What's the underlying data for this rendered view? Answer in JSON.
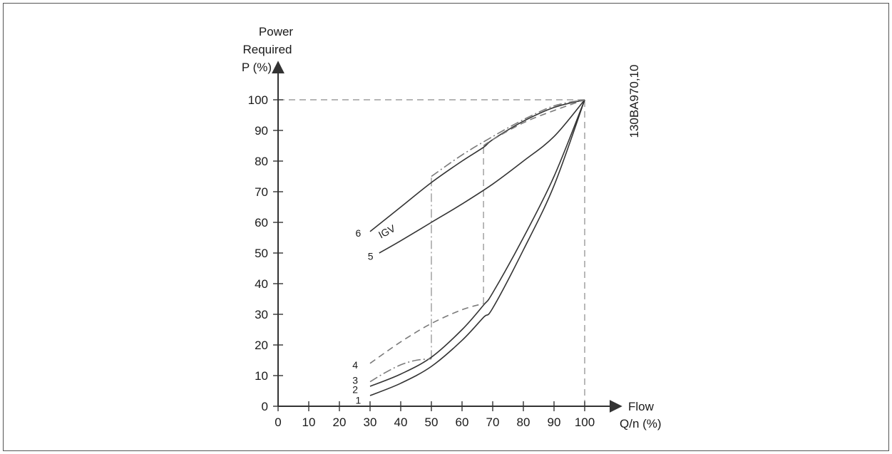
{
  "chart_data": {
    "type": "line",
    "xaxis": {
      "label_line1": "Flow",
      "label_line2": "Q/n (%)",
      "ticks": [
        0,
        10,
        20,
        30,
        40,
        50,
        60,
        70,
        80,
        90,
        100
      ],
      "range": [
        0,
        110
      ]
    },
    "yaxis": {
      "label_lines": [
        "Power",
        "Required",
        "P (%)"
      ],
      "ticks": [
        0,
        10,
        20,
        30,
        40,
        50,
        60,
        70,
        80,
        90,
        100
      ],
      "range": [
        0,
        110
      ]
    },
    "figure_code": "130BA970,10",
    "annotation": "IGV",
    "grid": false,
    "legend": "none",
    "series": [
      {
        "name": "1",
        "style": "solid",
        "x": [
          30,
          40,
          50,
          60,
          67,
          70,
          80,
          90,
          100
        ],
        "y": [
          3.5,
          7.5,
          13,
          21.5,
          29,
          32,
          51,
          72,
          100
        ]
      },
      {
        "name": "2",
        "style": "solid",
        "x": [
          30,
          40,
          50,
          60,
          67,
          70,
          80,
          90,
          100
        ],
        "y": [
          6.5,
          10.5,
          16,
          25,
          33,
          37,
          55,
          75,
          100
        ]
      },
      {
        "name": "3",
        "style": "dashdot",
        "x": [
          30,
          35,
          40,
          45,
          50
        ],
        "y": [
          8,
          11,
          13.5,
          15,
          15.5
        ]
      },
      {
        "name": "4",
        "style": "dashed",
        "x": [
          30,
          40,
          50,
          60,
          67
        ],
        "y": [
          14,
          21,
          27,
          31.5,
          33.5
        ]
      },
      {
        "name": "5",
        "style": "solid",
        "x": [
          33,
          40,
          50,
          60,
          70,
          80,
          90,
          100
        ],
        "y": [
          50,
          54,
          60,
          66,
          72.5,
          80,
          88,
          100
        ]
      },
      {
        "name": "6",
        "style": "solid",
        "x": [
          30,
          40,
          50,
          60,
          67,
          70,
          80,
          90,
          100
        ],
        "y": [
          57,
          65,
          73,
          80,
          84.5,
          87,
          93,
          97.5,
          100
        ]
      },
      {
        "name": "",
        "style": "dashdot",
        "x": [
          50,
          60,
          70,
          80,
          90,
          100
        ],
        "y": [
          75,
          82,
          88,
          93.5,
          98,
          100
        ]
      },
      {
        "name": "",
        "style": "dashed",
        "x": [
          67,
          70,
          80,
          90,
          100
        ],
        "y": [
          85,
          87,
          92.5,
          96.5,
          100
        ]
      }
    ],
    "reference_lines": [
      {
        "style": "dashed",
        "x": [
          0,
          100
        ],
        "y": [
          100,
          100
        ]
      },
      {
        "style": "dashed",
        "x": [
          100,
          100
        ],
        "y": [
          0,
          100
        ]
      },
      {
        "style": "dashdot",
        "x": [
          50,
          50
        ],
        "y": [
          15.5,
          75
        ]
      },
      {
        "style": "dashed",
        "x": [
          67,
          67
        ],
        "y": [
          33.5,
          85
        ]
      }
    ],
    "curve_labels": [
      {
        "text": "1",
        "x": 28,
        "y": 2
      },
      {
        "text": "2",
        "x": 27,
        "y": 5.5
      },
      {
        "text": "3",
        "x": 27,
        "y": 8.5
      },
      {
        "text": "4",
        "x": 27,
        "y": 13.5
      },
      {
        "text": "5",
        "x": 32,
        "y": 49
      },
      {
        "text": "6",
        "x": 28,
        "y": 56.5
      }
    ],
    "annotation_pos": {
      "x": 36,
      "y": 56,
      "rotate": -28
    }
  }
}
